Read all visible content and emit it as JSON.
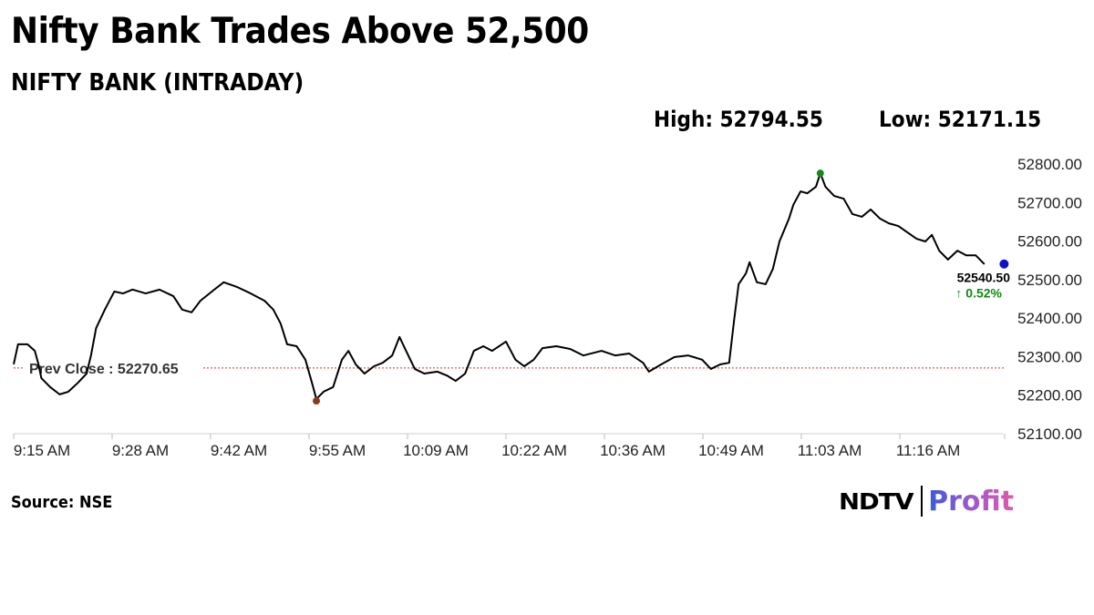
{
  "header": {
    "title": "Nifty Bank Trades Above 52,500",
    "subtitle": "NIFTY BANK (INTRADAY)",
    "high_label": "High: 52794.55",
    "low_label": "Low: 52171.15"
  },
  "footer": {
    "source": "Source: NSE",
    "logo_left": "NDTV",
    "logo_right": "Profit"
  },
  "colors": {
    "line": "#000000",
    "high_dot": "#138a13",
    "low_dot": "#8b3a1a",
    "last_dot": "#1010c8",
    "prev_close": "#d03030",
    "change": "#138a13"
  },
  "chart_data": {
    "type": "line",
    "title": "NIFTY BANK (INTRADAY)",
    "xlabel": "",
    "ylabel": "",
    "x_unit": "minutes since 9:15 AM",
    "ylim": [
      52100,
      52800
    ],
    "yticks": [
      "52100.00",
      "52200.00",
      "52300.00",
      "52400.00",
      "52500.00",
      "52600.00",
      "52700.00",
      "52800.00"
    ],
    "ytick_values": [
      52100,
      52200,
      52300,
      52400,
      52500,
      52600,
      52700,
      52800
    ],
    "xticks": [
      "9:15 AM",
      "9:28 AM",
      "9:42 AM",
      "9:55 AM",
      "10:09 AM",
      "10:22 AM",
      "10:36 AM",
      "10:49 AM",
      "11:03 AM",
      "11:16 AM"
    ],
    "xtick_values": [
      0,
      13.5,
      27,
      40.5,
      54,
      67.5,
      81,
      94.5,
      108,
      121.5
    ],
    "xlim": [
      0,
      136
    ],
    "prev_close": {
      "label": "Prev Close : 52270.65",
      "value": 52270.65
    },
    "high": {
      "t": 110.6,
      "value": 52794.55
    },
    "low": {
      "t": 41.5,
      "value": 52171.15
    },
    "last": {
      "t": 135.8,
      "value": 52540.5,
      "label": "52540.50",
      "change": "↑ 0.52%"
    },
    "points": [
      [
        0,
        52280
      ],
      [
        0.6,
        52332
      ],
      [
        1.9,
        52332
      ],
      [
        2.9,
        52315
      ],
      [
        3.4,
        52280
      ],
      [
        3.8,
        52244
      ],
      [
        5,
        52221
      ],
      [
        6.3,
        52202
      ],
      [
        7.5,
        52209
      ],
      [
        8.8,
        52232
      ],
      [
        10,
        52256
      ],
      [
        10.6,
        52303
      ],
      [
        11.3,
        52374
      ],
      [
        12.5,
        52422
      ],
      [
        13.8,
        52469
      ],
      [
        15,
        52464
      ],
      [
        16.3,
        52474
      ],
      [
        18.1,
        52464
      ],
      [
        20,
        52474
      ],
      [
        21.9,
        52457
      ],
      [
        23.1,
        52422
      ],
      [
        24.4,
        52415
      ],
      [
        25.6,
        52445
      ],
      [
        27.5,
        52474
      ],
      [
        28.8,
        52493
      ],
      [
        30.6,
        52481
      ],
      [
        32.5,
        52464
      ],
      [
        34.4,
        52445
      ],
      [
        35.6,
        52422
      ],
      [
        36.6,
        52386
      ],
      [
        37.5,
        52332
      ],
      [
        38.8,
        52327
      ],
      [
        40,
        52292
      ],
      [
        40.9,
        52232
      ],
      [
        41.5,
        52190
      ],
      [
        42.5,
        52209
      ],
      [
        43.8,
        52221
      ],
      [
        45,
        52292
      ],
      [
        45.9,
        52315
      ],
      [
        46.9,
        52280
      ],
      [
        48.1,
        52256
      ],
      [
        49.4,
        52275
      ],
      [
        50.6,
        52284
      ],
      [
        51.9,
        52303
      ],
      [
        52.9,
        52351
      ],
      [
        53.8,
        52315
      ],
      [
        55,
        52268
      ],
      [
        56.3,
        52256
      ],
      [
        58.1,
        52261
      ],
      [
        59.4,
        52251
      ],
      [
        60.6,
        52237
      ],
      [
        61.9,
        52256
      ],
      [
        63.1,
        52315
      ],
      [
        64.4,
        52327
      ],
      [
        65.6,
        52315
      ],
      [
        67.5,
        52339
      ],
      [
        68.8,
        52292
      ],
      [
        70,
        52275
      ],
      [
        71.3,
        52292
      ],
      [
        72.5,
        52322
      ],
      [
        74.4,
        52327
      ],
      [
        76.3,
        52320
      ],
      [
        78.1,
        52303
      ],
      [
        80.6,
        52315
      ],
      [
        82.5,
        52303
      ],
      [
        84.4,
        52308
      ],
      [
        86.3,
        52284
      ],
      [
        87.1,
        52261
      ],
      [
        88.8,
        52280
      ],
      [
        90.6,
        52299
      ],
      [
        92.5,
        52303
      ],
      [
        94.4,
        52292
      ],
      [
        95.6,
        52268
      ],
      [
        96.9,
        52280
      ],
      [
        98.1,
        52284
      ],
      [
        98.8,
        52398
      ],
      [
        99.4,
        52488
      ],
      [
        100.4,
        52516
      ],
      [
        100.9,
        52545
      ],
      [
        101.9,
        52493
      ],
      [
        103.1,
        52488
      ],
      [
        104.1,
        52528
      ],
      [
        105,
        52599
      ],
      [
        106.3,
        52658
      ],
      [
        106.9,
        52694
      ],
      [
        107.9,
        52729
      ],
      [
        108.8,
        52724
      ],
      [
        110,
        52741
      ],
      [
        110.6,
        52776
      ],
      [
        111.3,
        52741
      ],
      [
        112.5,
        52717
      ],
      [
        113.8,
        52710
      ],
      [
        115,
        52670
      ],
      [
        116.3,
        52663
      ],
      [
        117.5,
        52682
      ],
      [
        118.8,
        52658
      ],
      [
        120,
        52646
      ],
      [
        121.3,
        52639
      ],
      [
        122.5,
        52623
      ],
      [
        123.8,
        52606
      ],
      [
        125,
        52599
      ],
      [
        125.9,
        52616
      ],
      [
        126.9,
        52575
      ],
      [
        128.1,
        52552
      ],
      [
        129.4,
        52575
      ],
      [
        130.6,
        52563
      ],
      [
        131.9,
        52563
      ],
      [
        133.1,
        52540
      ]
    ]
  }
}
